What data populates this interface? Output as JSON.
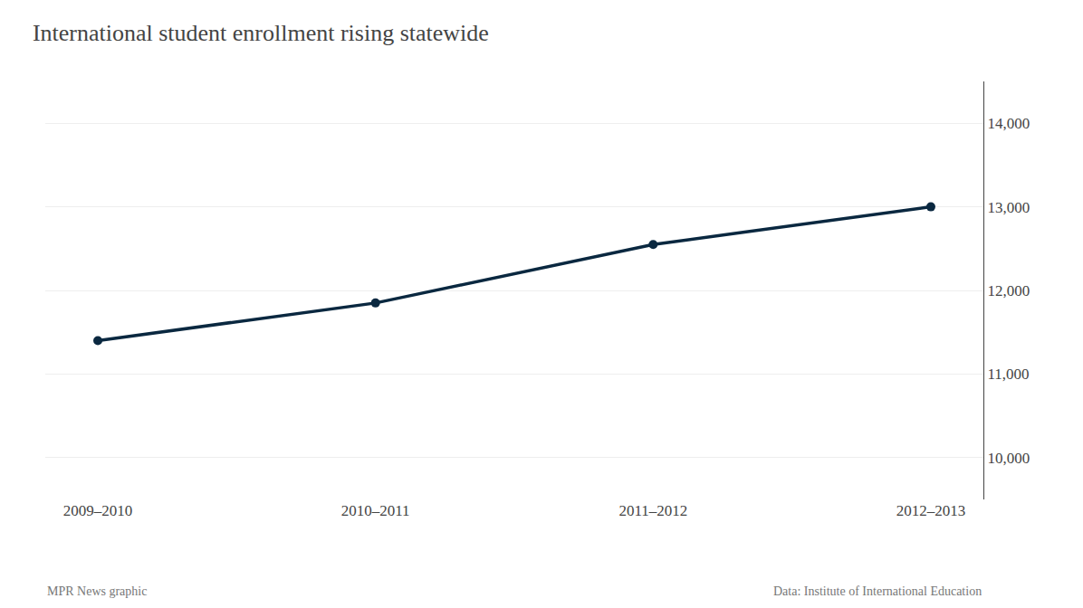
{
  "chart_data": {
    "type": "line",
    "title": "International student enrollment rising statewide",
    "categories": [
      "2009–2010",
      "2010–2011",
      "2011–2012",
      "2012–2013"
    ],
    "values": [
      11400,
      11850,
      12550,
      13000
    ],
    "color": "#0a2840",
    "marker": "circle",
    "ylim": [
      9500,
      14500
    ],
    "yticks": [
      {
        "value": 10000,
        "label": "10,000"
      },
      {
        "value": 11000,
        "label": "11,000"
      },
      {
        "value": 12000,
        "label": "12,000"
      },
      {
        "value": 13000,
        "label": "13,000"
      },
      {
        "value": 14000,
        "label": "14,000"
      }
    ],
    "grid": true,
    "annotations": [
      "MPR News graphic",
      "Data: Institute of International Education"
    ]
  }
}
